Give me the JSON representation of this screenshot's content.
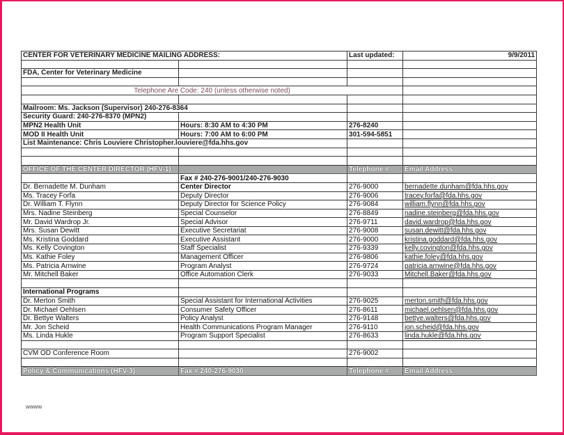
{
  "rows": [
    {
      "type": "bold",
      "cells": [
        {
          "t": "CENTER FOR VETERINARY MEDICINE MAILING ADDRESS:",
          "span": 2
        },
        {
          "t": "Last updated:"
        },
        {
          "t": "9/9/2011",
          "align": "right"
        }
      ]
    },
    {
      "type": "blank",
      "cells": [
        {
          "t": ""
        },
        {
          "t": ""
        },
        {
          "t": ""
        },
        {
          "t": ""
        }
      ]
    },
    {
      "type": "bold",
      "cells": [
        {
          "t": "FDA, Center for Veterinary Medicine"
        },
        {
          "t": ""
        },
        {
          "t": ""
        },
        {
          "t": ""
        }
      ]
    },
    {
      "type": "blank",
      "cells": [
        {
          "t": ""
        },
        {
          "t": ""
        },
        {
          "t": ""
        },
        {
          "t": ""
        }
      ]
    },
    {
      "type": "note",
      "cells": [
        {
          "t": "Telephone Are Code: 240 (unless otherwise noted)",
          "span": 3,
          "align": "center",
          "mauve": true
        },
        {
          "t": ""
        }
      ]
    },
    {
      "type": "blank",
      "cells": [
        {
          "t": ""
        },
        {
          "t": ""
        },
        {
          "t": ""
        },
        {
          "t": ""
        }
      ]
    },
    {
      "type": "bold",
      "cells": [
        {
          "t": "Mailroom:  Ms. Jackson (Supervisor)  240-276-8364",
          "span": 2
        },
        {
          "t": ""
        },
        {
          "t": ""
        }
      ]
    },
    {
      "type": "bold",
      "cells": [
        {
          "t": "Security Guard:  240-276-8370 (MPN2)"
        },
        {
          "t": ""
        },
        {
          "t": ""
        },
        {
          "t": ""
        }
      ]
    },
    {
      "type": "bold",
      "cells": [
        {
          "t": "MPN2 Health Unit"
        },
        {
          "t": "Hours: 8:30 AM to 4:30 PM"
        },
        {
          "t": "276-8240"
        },
        {
          "t": ""
        }
      ]
    },
    {
      "type": "bold",
      "cells": [
        {
          "t": "MOD II Health Unit"
        },
        {
          "t": "Hours: 7:00 AM to 6:00 PM"
        },
        {
          "t": "301-594-5851"
        },
        {
          "t": ""
        }
      ]
    },
    {
      "type": "bold",
      "cells": [
        {
          "t": "List Maintenance:  Chris Louviere   Christopher.louviere@fda.hhs.gov",
          "span": 2
        },
        {
          "t": ""
        },
        {
          "t": ""
        }
      ]
    },
    {
      "type": "blank",
      "cells": [
        {
          "t": ""
        },
        {
          "t": ""
        },
        {
          "t": ""
        },
        {
          "t": ""
        }
      ]
    },
    {
      "type": "blank",
      "cells": [
        {
          "t": ""
        },
        {
          "t": ""
        },
        {
          "t": ""
        },
        {
          "t": ""
        }
      ]
    },
    {
      "type": "hdr",
      "cells": [
        {
          "t": "OFFICE OF THE CENTER DIRECTOR (HFV-1)"
        },
        {
          "t": ""
        },
        {
          "t": "Telephone #"
        },
        {
          "t": "Email Address"
        }
      ]
    },
    {
      "type": "normal",
      "cells": [
        {
          "t": ""
        },
        {
          "t": "Fax # 240-276-9001/240-276-9030",
          "bold": true
        },
        {
          "t": ""
        },
        {
          "t": ""
        }
      ]
    },
    {
      "type": "normal",
      "cells": [
        {
          "t": "Dr. Bernadette M. Dunham"
        },
        {
          "t": "Center Director",
          "bold": true
        },
        {
          "t": "276-9000"
        },
        {
          "t": "bernadette.dunham@fda.hhs.gov",
          "email": true
        }
      ]
    },
    {
      "type": "normal",
      "cells": [
        {
          "t": "Ms. Tracey Forfa"
        },
        {
          "t": "Deputy Director"
        },
        {
          "t": "276-9006"
        },
        {
          "t": "tracey.forfa@fda.hhs.gov",
          "email": true
        }
      ]
    },
    {
      "type": "normal",
      "cells": [
        {
          "t": "Dr. William T. Flynn"
        },
        {
          "t": "Deputy Director for Science Policy"
        },
        {
          "t": "276-9084"
        },
        {
          "t": "william.flynn@fda.hhs.gov",
          "email": true
        }
      ]
    },
    {
      "type": "normal",
      "cells": [
        {
          "t": "Mrs. Nadine Steinberg"
        },
        {
          "t": "Special Counselor"
        },
        {
          "t": "276-8849"
        },
        {
          "t": "nadine.steinberg@fda.hhs.gov",
          "email": true
        }
      ]
    },
    {
      "type": "normal",
      "cells": [
        {
          "t": "Mr. David Wardrop Jr."
        },
        {
          "t": "Special Advisor"
        },
        {
          "t": "276-9711"
        },
        {
          "t": "david.wardrop@fda.hhs.gov",
          "email": true
        }
      ]
    },
    {
      "type": "normal",
      "cells": [
        {
          "t": "Mrs. Susan Dewitt"
        },
        {
          "t": "Executive Secretariat"
        },
        {
          "t": "276-9008"
        },
        {
          "t": "susan.dewitt@fda.hhs.gov",
          "email": true
        }
      ]
    },
    {
      "type": "normal",
      "cells": [
        {
          "t": "Ms. Kristina Goddard"
        },
        {
          "t": "Executive Assistant"
        },
        {
          "t": "276-9000"
        },
        {
          "t": "kristina.goddard@fda.hhs.gov",
          "email": true
        }
      ]
    },
    {
      "type": "normal",
      "cells": [
        {
          "t": "Ms. Kelly Covington"
        },
        {
          "t": "Staff Specialist"
        },
        {
          "t": "276-9339"
        },
        {
          "t": "kelly.covington@fda.hhs.gov",
          "email": true
        }
      ]
    },
    {
      "type": "normal",
      "cells": [
        {
          "t": "Ms. Kathie Foley"
        },
        {
          "t": "Management Officer"
        },
        {
          "t": "276-9806"
        },
        {
          "t": "kathie.foley@fda.hhs.gov",
          "email": true
        }
      ]
    },
    {
      "type": "normal",
      "cells": [
        {
          "t": "Ms. Patricia Arnwine"
        },
        {
          "t": "Program Analyst"
        },
        {
          "t": "276-9724"
        },
        {
          "t": "patricia.arnwine@fda.hhs.gov",
          "email": true
        }
      ]
    },
    {
      "type": "normal",
      "cells": [
        {
          "t": "Mr. Mitchell Baker"
        },
        {
          "t": "Office Automation Clerk"
        },
        {
          "t": "276-9033"
        },
        {
          "t": "Mitchell.Baker@fda.hhs.gov",
          "email": true
        }
      ]
    },
    {
      "type": "blank",
      "cells": [
        {
          "t": ""
        },
        {
          "t": ""
        },
        {
          "t": ""
        },
        {
          "t": ""
        }
      ]
    },
    {
      "type": "normal",
      "cells": [
        {
          "t": "International Programs",
          "bold": true
        },
        {
          "t": ""
        },
        {
          "t": ""
        },
        {
          "t": ""
        }
      ]
    },
    {
      "type": "normal",
      "cells": [
        {
          "t": "Dr. Merton Smith"
        },
        {
          "t": "Special Assistant for International Activities"
        },
        {
          "t": "276-9025"
        },
        {
          "t": "merton.smith@fda.hhs.gov",
          "email": true
        }
      ]
    },
    {
      "type": "normal",
      "cells": [
        {
          "t": "Dr. Michael Oehlsen"
        },
        {
          "t": "Consumer Safety Officer"
        },
        {
          "t": "276-8611"
        },
        {
          "t": "michael.oehlsen@fda.hhs.gov",
          "email": true
        }
      ]
    },
    {
      "type": "normal",
      "cells": [
        {
          "t": "Dr. Bettye Walters"
        },
        {
          "t": "Policy Analyst"
        },
        {
          "t": "276-9148"
        },
        {
          "t": "bettye.walters@fda.hhs.gov",
          "email": true
        }
      ]
    },
    {
      "type": "normal",
      "cells": [
        {
          "t": "Mr. Jon Scheid"
        },
        {
          "t": "Health Communications Program Manager"
        },
        {
          "t": "276-9110"
        },
        {
          "t": "jon.scheid@fda.hhs.gov",
          "email": true
        }
      ]
    },
    {
      "type": "normal",
      "cells": [
        {
          "t": "Ms. Linda Hukle"
        },
        {
          "t": "Program Support Specialist"
        },
        {
          "t": "276-8633"
        },
        {
          "t": "linda.hukle@fda.hhs.gov",
          "email": true
        }
      ]
    },
    {
      "type": "blank",
      "cells": [
        {
          "t": ""
        },
        {
          "t": ""
        },
        {
          "t": ""
        },
        {
          "t": ""
        }
      ]
    },
    {
      "type": "normal",
      "cells": [
        {
          "t": "CVM OD Conference Room"
        },
        {
          "t": ""
        },
        {
          "t": "276-9002"
        },
        {
          "t": ""
        }
      ]
    },
    {
      "type": "blank",
      "cells": [
        {
          "t": ""
        },
        {
          "t": ""
        },
        {
          "t": ""
        },
        {
          "t": ""
        }
      ]
    },
    {
      "type": "hdr",
      "cells": [
        {
          "t": "Policy & Communications (HFV-3)"
        },
        {
          "t": "Fax # 240-276-9030"
        },
        {
          "t": "Telephone #"
        },
        {
          "t": "Email Address"
        }
      ]
    }
  ],
  "footer": {
    "text": "wwww"
  },
  "colors": {
    "frame": "#e8175d",
    "header_fill": "#a7aaa9",
    "note_text": "#7a4c5c"
  }
}
